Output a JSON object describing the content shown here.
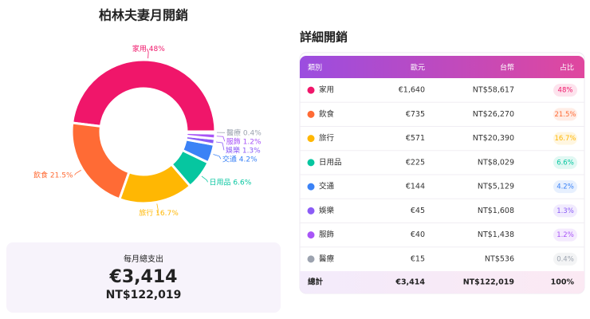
{
  "chart_data": {
    "type": "pie",
    "title": "柏林夫妻月開銷",
    "categories": [
      "家用",
      "飲食",
      "旅行",
      "日用品",
      "交通",
      "娛樂",
      "服飾",
      "醫療"
    ],
    "values": [
      48,
      21.5,
      16.7,
      6.6,
      4.2,
      1.3,
      1.2,
      0.4
    ],
    "value_labels": [
      "48%",
      "21.5%",
      "16.7%",
      "6.6%",
      "4.2%",
      "1.3%",
      "1.2%",
      "0.4%"
    ],
    "colors": [
      "#f0166a",
      "#ff6b35",
      "#ffb703",
      "#06c6a0",
      "#3b82f6",
      "#8b5cf6",
      "#a855f7",
      "#9ca3af"
    ],
    "donut": true
  },
  "summary": {
    "title": "每月總支出",
    "euro": "€3,414",
    "ntd": "NT$122,019"
  },
  "table": {
    "title": "詳細開銷",
    "header": [
      "類別",
      "歐元",
      "台幣",
      "占比"
    ],
    "rows": [
      [
        "家用",
        "€1,640",
        "NT$58,617",
        "48%"
      ],
      [
        "飲食",
        "€735",
        "NT$26,270",
        "21.5%"
      ],
      [
        "旅行",
        "€571",
        "NT$20,390",
        "16.7%"
      ],
      [
        "日用品",
        "€225",
        "NT$8,029",
        "6.6%"
      ],
      [
        "交通",
        "€144",
        "NT$5,129",
        "4.2%"
      ],
      [
        "娛樂",
        "€45",
        "NT$1,608",
        "1.3%"
      ],
      [
        "服飾",
        "€40",
        "NT$1,438",
        "1.2%"
      ],
      [
        "醫療",
        "€15",
        "NT$536",
        "0.4%"
      ]
    ],
    "footer": [
      "總計",
      "€3,414",
      "NT$122,019",
      "100%"
    ]
  }
}
